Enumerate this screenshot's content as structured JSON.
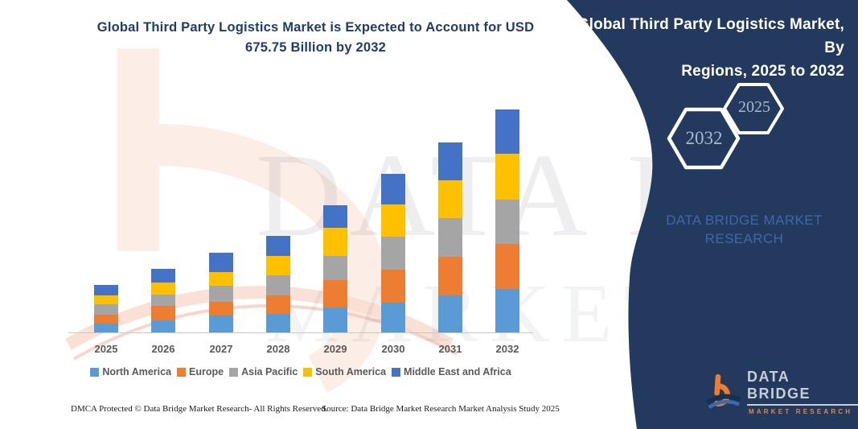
{
  "header": {
    "title_line1": "Global Third Party Logistics Market is Expected to Account for USD",
    "title_line2": "675.75 Billion by 2032",
    "title_color": "#1F3D68"
  },
  "panel": {
    "bg_color": "#233A5E",
    "title_line1": "Global Third Party Logistics Market, By",
    "title_line2": "Regions, 2025 to 2032",
    "hexagons": [
      {
        "label": "2032"
      },
      {
        "label": "2025"
      }
    ],
    "watermark_line1": "DATA BRIDGE MARKET",
    "watermark_line2": "RESEARCH",
    "logo": {
      "wordmark": "DATA BRIDGE",
      "subtext": "MARKET RESEARCH",
      "accent_color": "#ED7D31"
    }
  },
  "chart_data": {
    "type": "bar",
    "stacked": true,
    "title": "Global Third Party Logistics Market is Expected to Account for USD 675.75 Billion by 2032",
    "xlabel": "",
    "ylabel": "",
    "unit": "USD Billion (values estimated from bar heights; 2032 total = 675.75)",
    "grid": false,
    "legend_position": "bottom",
    "ylim": [
      0,
      700
    ],
    "categories": [
      "2025",
      "2026",
      "2027",
      "2028",
      "2029",
      "2030",
      "2031",
      "2032"
    ],
    "series": [
      {
        "name": "North America",
        "color": "#5B9BD5",
        "values": [
          27,
          37,
          51,
          56,
          76,
          90,
          112,
          132
        ]
      },
      {
        "name": "Europe",
        "color": "#ED7D31",
        "values": [
          27,
          44,
          41,
          56,
          83,
          100,
          117,
          137
        ]
      },
      {
        "name": "Asia Pacific",
        "color": "#A5A5A5",
        "values": [
          32,
          34,
          49,
          61,
          73,
          100,
          117,
          134
        ]
      },
      {
        "name": "South America",
        "color": "#FFC000",
        "values": [
          27,
          37,
          41,
          59,
          85,
          98,
          115,
          139
        ]
      },
      {
        "name": "Middle East and Africa",
        "color": "#4472C4",
        "values": [
          32,
          41,
          59,
          61,
          68,
          93,
          115,
          134
        ]
      }
    ],
    "totals_estimated": [
      145,
      193,
      241,
      293,
      385,
      481,
      576,
      676
    ]
  },
  "watermark": {
    "line1": "DATA BRIDGE",
    "line2": "MARKET RESEARCH"
  },
  "footer": {
    "left": "DMCA Protected © Data Bridge Market Research-  All Rights Reserved.",
    "source": "Source: Data Bridge Market Research  Market Analysis Study 2025"
  }
}
